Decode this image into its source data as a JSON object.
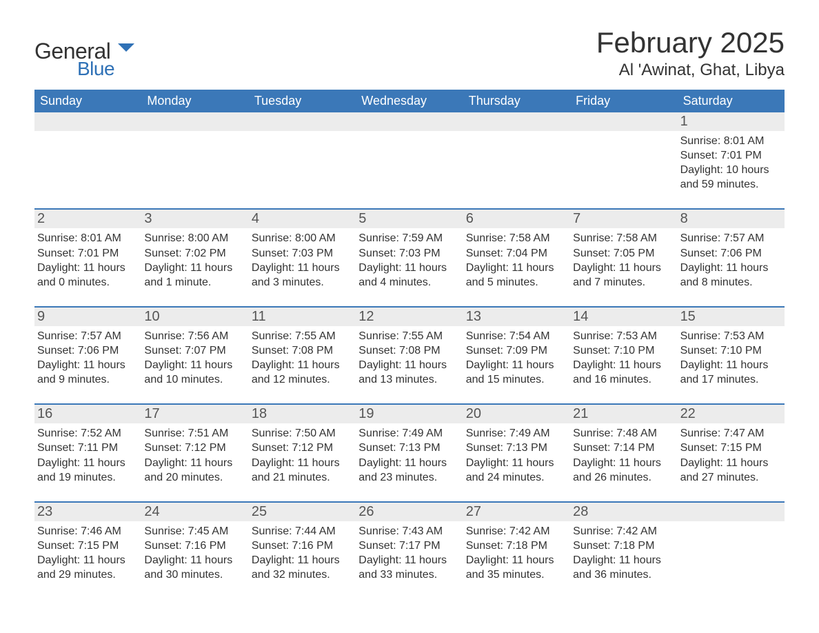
{
  "brand": {
    "general": "General",
    "blue": "Blue",
    "flag_color": "#2f71b6"
  },
  "title": "February 2025",
  "subtitle": "Al 'Awinat, Ghat, Libya",
  "colors": {
    "header_bg": "#3b78b8",
    "header_text": "#ffffff",
    "daynum_bg": "#ececec",
    "week_divider": "#3b78b8",
    "body_text": "#333333",
    "daynum_text": "#555555"
  },
  "weekdays": [
    "Sunday",
    "Monday",
    "Tuesday",
    "Wednesday",
    "Thursday",
    "Friday",
    "Saturday"
  ],
  "weeks": [
    [
      {
        "num": "",
        "lines": []
      },
      {
        "num": "",
        "lines": []
      },
      {
        "num": "",
        "lines": []
      },
      {
        "num": "",
        "lines": []
      },
      {
        "num": "",
        "lines": []
      },
      {
        "num": "",
        "lines": []
      },
      {
        "num": "1",
        "lines": [
          "Sunrise: 8:01 AM",
          "Sunset: 7:01 PM",
          "Daylight: 10 hours and 59 minutes."
        ]
      }
    ],
    [
      {
        "num": "2",
        "lines": [
          "Sunrise: 8:01 AM",
          "Sunset: 7:01 PM",
          "Daylight: 11 hours and 0 minutes."
        ]
      },
      {
        "num": "3",
        "lines": [
          "Sunrise: 8:00 AM",
          "Sunset: 7:02 PM",
          "Daylight: 11 hours and 1 minute."
        ]
      },
      {
        "num": "4",
        "lines": [
          "Sunrise: 8:00 AM",
          "Sunset: 7:03 PM",
          "Daylight: 11 hours and 3 minutes."
        ]
      },
      {
        "num": "5",
        "lines": [
          "Sunrise: 7:59 AM",
          "Sunset: 7:03 PM",
          "Daylight: 11 hours and 4 minutes."
        ]
      },
      {
        "num": "6",
        "lines": [
          "Sunrise: 7:58 AM",
          "Sunset: 7:04 PM",
          "Daylight: 11 hours and 5 minutes."
        ]
      },
      {
        "num": "7",
        "lines": [
          "Sunrise: 7:58 AM",
          "Sunset: 7:05 PM",
          "Daylight: 11 hours and 7 minutes."
        ]
      },
      {
        "num": "8",
        "lines": [
          "Sunrise: 7:57 AM",
          "Sunset: 7:06 PM",
          "Daylight: 11 hours and 8 minutes."
        ]
      }
    ],
    [
      {
        "num": "9",
        "lines": [
          "Sunrise: 7:57 AM",
          "Sunset: 7:06 PM",
          "Daylight: 11 hours and 9 minutes."
        ]
      },
      {
        "num": "10",
        "lines": [
          "Sunrise: 7:56 AM",
          "Sunset: 7:07 PM",
          "Daylight: 11 hours and 10 minutes."
        ]
      },
      {
        "num": "11",
        "lines": [
          "Sunrise: 7:55 AM",
          "Sunset: 7:08 PM",
          "Daylight: 11 hours and 12 minutes."
        ]
      },
      {
        "num": "12",
        "lines": [
          "Sunrise: 7:55 AM",
          "Sunset: 7:08 PM",
          "Daylight: 11 hours and 13 minutes."
        ]
      },
      {
        "num": "13",
        "lines": [
          "Sunrise: 7:54 AM",
          "Sunset: 7:09 PM",
          "Daylight: 11 hours and 15 minutes."
        ]
      },
      {
        "num": "14",
        "lines": [
          "Sunrise: 7:53 AM",
          "Sunset: 7:10 PM",
          "Daylight: 11 hours and 16 minutes."
        ]
      },
      {
        "num": "15",
        "lines": [
          "Sunrise: 7:53 AM",
          "Sunset: 7:10 PM",
          "Daylight: 11 hours and 17 minutes."
        ]
      }
    ],
    [
      {
        "num": "16",
        "lines": [
          "Sunrise: 7:52 AM",
          "Sunset: 7:11 PM",
          "Daylight: 11 hours and 19 minutes."
        ]
      },
      {
        "num": "17",
        "lines": [
          "Sunrise: 7:51 AM",
          "Sunset: 7:12 PM",
          "Daylight: 11 hours and 20 minutes."
        ]
      },
      {
        "num": "18",
        "lines": [
          "Sunrise: 7:50 AM",
          "Sunset: 7:12 PM",
          "Daylight: 11 hours and 21 minutes."
        ]
      },
      {
        "num": "19",
        "lines": [
          "Sunrise: 7:49 AM",
          "Sunset: 7:13 PM",
          "Daylight: 11 hours and 23 minutes."
        ]
      },
      {
        "num": "20",
        "lines": [
          "Sunrise: 7:49 AM",
          "Sunset: 7:13 PM",
          "Daylight: 11 hours and 24 minutes."
        ]
      },
      {
        "num": "21",
        "lines": [
          "Sunrise: 7:48 AM",
          "Sunset: 7:14 PM",
          "Daylight: 11 hours and 26 minutes."
        ]
      },
      {
        "num": "22",
        "lines": [
          "Sunrise: 7:47 AM",
          "Sunset: 7:15 PM",
          "Daylight: 11 hours and 27 minutes."
        ]
      }
    ],
    [
      {
        "num": "23",
        "lines": [
          "Sunrise: 7:46 AM",
          "Sunset: 7:15 PM",
          "Daylight: 11 hours and 29 minutes."
        ]
      },
      {
        "num": "24",
        "lines": [
          "Sunrise: 7:45 AM",
          "Sunset: 7:16 PM",
          "Daylight: 11 hours and 30 minutes."
        ]
      },
      {
        "num": "25",
        "lines": [
          "Sunrise: 7:44 AM",
          "Sunset: 7:16 PM",
          "Daylight: 11 hours and 32 minutes."
        ]
      },
      {
        "num": "26",
        "lines": [
          "Sunrise: 7:43 AM",
          "Sunset: 7:17 PM",
          "Daylight: 11 hours and 33 minutes."
        ]
      },
      {
        "num": "27",
        "lines": [
          "Sunrise: 7:42 AM",
          "Sunset: 7:18 PM",
          "Daylight: 11 hours and 35 minutes."
        ]
      },
      {
        "num": "28",
        "lines": [
          "Sunrise: 7:42 AM",
          "Sunset: 7:18 PM",
          "Daylight: 11 hours and 36 minutes."
        ]
      },
      {
        "num": "",
        "lines": []
      }
    ]
  ]
}
